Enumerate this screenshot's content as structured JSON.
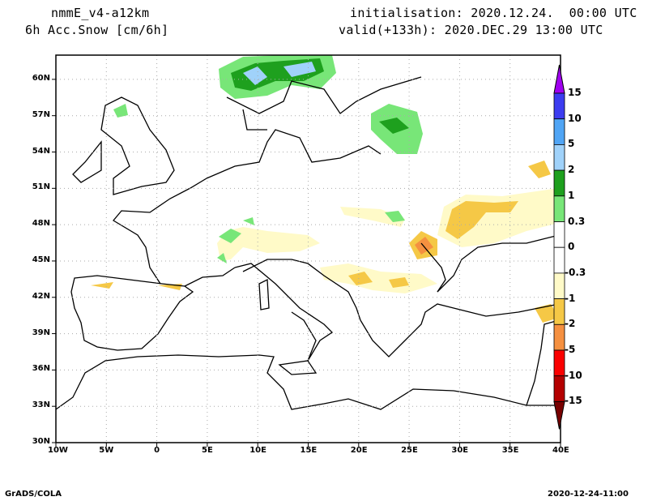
{
  "header": {
    "model": "nmmE_v4-a12km",
    "field": "6h Acc.Snow [cm/6h]",
    "init": "initialisation: 2020.12.24.  00:00 UTC",
    "valid": "valid(+133h): 2020.DEC.29 13:00 UTC"
  },
  "map": {
    "lon_range": [
      -10,
      40
    ],
    "lat_range": [
      30,
      62
    ],
    "lat_labels": [
      "30N",
      "33N",
      "36N",
      "39N",
      "42N",
      "45N",
      "48N",
      "51N",
      "54N",
      "57N",
      "60N"
    ],
    "lat_values": [
      30,
      33,
      36,
      39,
      42,
      45,
      48,
      51,
      54,
      57,
      60
    ],
    "lon_labels": [
      "10W",
      "5W",
      "0",
      "5E",
      "10E",
      "15E",
      "20E",
      "25E",
      "30E",
      "35E",
      "40E"
    ],
    "lon_values": [
      -10,
      -5,
      0,
      5,
      10,
      15,
      20,
      25,
      30,
      35,
      40
    ]
  },
  "colorbar": {
    "labels": [
      "15",
      "10",
      "5",
      "2",
      "1",
      "0.3",
      "0",
      "-0.3",
      "-1",
      "-2",
      "-5",
      "-10",
      "-15"
    ],
    "colors": [
      "#a000f0",
      "#3c3cf0",
      "#50a5f5",
      "#a0d2fa",
      "#1ea01e",
      "#78e678",
      "#ffffff",
      "#ffffff",
      "#fffac8",
      "#f5c846",
      "#f59040",
      "#fa0000",
      "#b40000",
      "#780000"
    ]
  },
  "footer": {
    "left": "GrADS/COLA",
    "right": "2020-12-24-11:00"
  }
}
